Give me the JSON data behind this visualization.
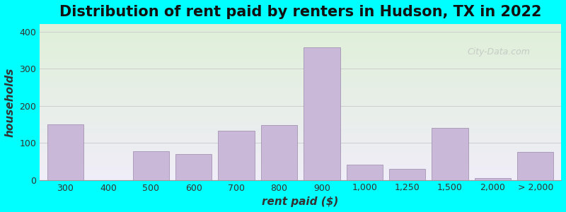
{
  "title": "Distribution of rent paid by renters in Hudson, TX in 2022",
  "xlabel": "rent paid ($)",
  "ylabel": "households",
  "background_color": "#00ffff",
  "bar_color": "#c9b8d8",
  "bar_edge_color": "#9988aa",
  "categories": [
    "300",
    "400",
    "500",
    "600",
    "700",
    "800",
    "900",
    "1,000",
    "1,250",
    "1,500",
    "2,000",
    "> 2,000"
  ],
  "values": [
    150,
    0,
    78,
    70,
    133,
    148,
    358,
    42,
    30,
    141,
    5,
    75
  ],
  "ylim": [
    0,
    420
  ],
  "yticks": [
    0,
    100,
    200,
    300,
    400
  ],
  "grid_color": "#cccccc",
  "title_fontsize": 15,
  "axis_label_fontsize": 11,
  "tick_fontsize": 9,
  "gradient_top": "#dff0d8",
  "gradient_bottom": "#f0edf8"
}
